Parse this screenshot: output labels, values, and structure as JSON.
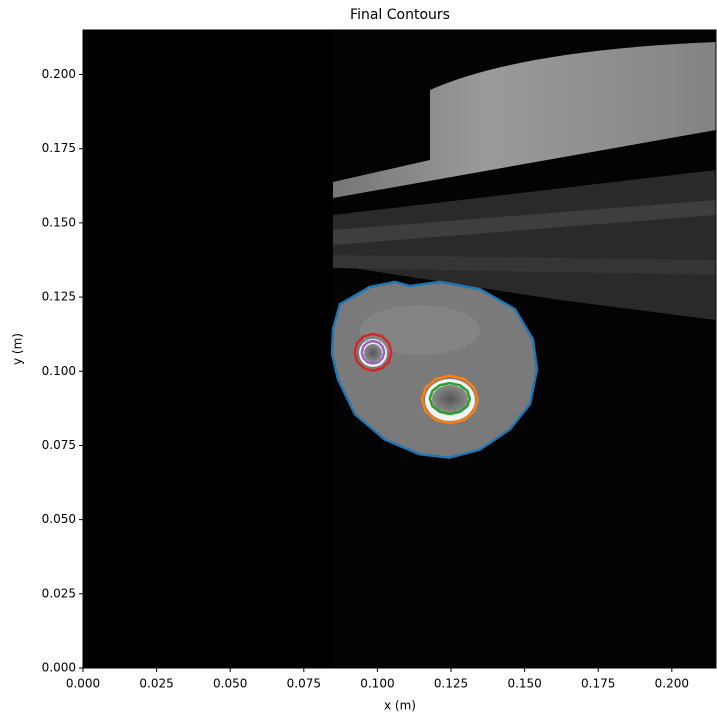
{
  "chart_data": {
    "type": "contour",
    "title": "Final Contours",
    "xlabel": "x (m)",
    "ylabel": "y (m)",
    "xlim": [
      0,
      0.215
    ],
    "ylim": [
      0,
      0.215
    ],
    "xticks": [
      {
        "value": 0,
        "label": "0.000"
      },
      {
        "value": 0.025,
        "label": "0.025"
      },
      {
        "value": 0.05,
        "label": "0.050"
      },
      {
        "value": 0.075,
        "label": "0.075"
      },
      {
        "value": 0.1,
        "label": "0.100"
      },
      {
        "value": 0.125,
        "label": "0.125"
      },
      {
        "value": 0.15,
        "label": "0.150"
      },
      {
        "value": 0.175,
        "label": "0.175"
      },
      {
        "value": 0.2,
        "label": "0.200"
      }
    ],
    "yticks": [
      {
        "value": 0,
        "label": "0.000"
      },
      {
        "value": 0.025,
        "label": "0.025"
      },
      {
        "value": 0.05,
        "label": "0.050"
      },
      {
        "value": 0.075,
        "label": "0.075"
      },
      {
        "value": 0.1,
        "label": "0.100"
      },
      {
        "value": 0.125,
        "label": "0.125"
      },
      {
        "value": 0.15,
        "label": "0.150"
      },
      {
        "value": 0.175,
        "label": "0.175"
      },
      {
        "value": 0.2,
        "label": "0.200"
      }
    ],
    "series": [
      {
        "color": "#1f77b4",
        "x": [
          0.0849,
          0.0873,
          0.0974,
          0.1059,
          0.111,
          0.1212,
          0.1348,
          0.1467,
          0.1528,
          0.1542,
          0.1518,
          0.145,
          0.1348,
          0.1246,
          0.1144,
          0.1025,
          0.0924,
          0.0866,
          0.0846
        ],
        "y": [
          0.1142,
          0.1226,
          0.1284,
          0.1301,
          0.1287,
          0.1301,
          0.1277,
          0.1209,
          0.1108,
          0.1007,
          0.0889,
          0.0804,
          0.0736,
          0.0709,
          0.072,
          0.077,
          0.0855,
          0.0973,
          0.1057
        ]
      },
      {
        "color": "#d62728",
        "x": [
          0.1047,
          0.1039,
          0.1016,
          0.0985,
          0.0954,
          0.0931,
          0.0923,
          0.0931,
          0.0954,
          0.0985,
          0.1016,
          0.1039
        ],
        "y": [
          0.1064,
          0.1095,
          0.1118,
          0.1126,
          0.1118,
          0.1095,
          0.1064,
          0.1033,
          0.101,
          0.1002,
          0.101,
          0.1033
        ]
      },
      {
        "color": "#9467bd",
        "x": [
          0.1023,
          0.1018,
          0.1004,
          0.0985,
          0.0966,
          0.0952,
          0.0947,
          0.0952,
          0.0966,
          0.0985,
          0.1004,
          0.1018
        ],
        "y": [
          0.1064,
          0.1083,
          0.1097,
          0.1102,
          0.1097,
          0.1083,
          0.1064,
          0.1045,
          0.1031,
          0.1026,
          0.1031,
          0.1045
        ]
      },
      {
        "color": "#ff7f0e",
        "x": [
          0.1341,
          0.1328,
          0.1294,
          0.1246,
          0.1199,
          0.1164,
          0.1151,
          0.1164,
          0.1199,
          0.1246,
          0.1294,
          0.1328
        ],
        "y": [
          0.0905,
          0.0945,
          0.0974,
          0.0985,
          0.0974,
          0.0945,
          0.0905,
          0.0865,
          0.0836,
          0.0825,
          0.0836,
          0.0865
        ]
      },
      {
        "color": "#2ca02c",
        "x": [
          0.1314,
          0.1305,
          0.128,
          0.1246,
          0.1212,
          0.1187,
          0.1178,
          0.1187,
          0.1212,
          0.1246,
          0.128,
          0.1305
        ],
        "y": [
          0.0908,
          0.0934,
          0.0953,
          0.096,
          0.0953,
          0.0934,
          0.0908,
          0.0882,
          0.0863,
          0.0856,
          0.0863,
          0.0882
        ]
      }
    ]
  }
}
